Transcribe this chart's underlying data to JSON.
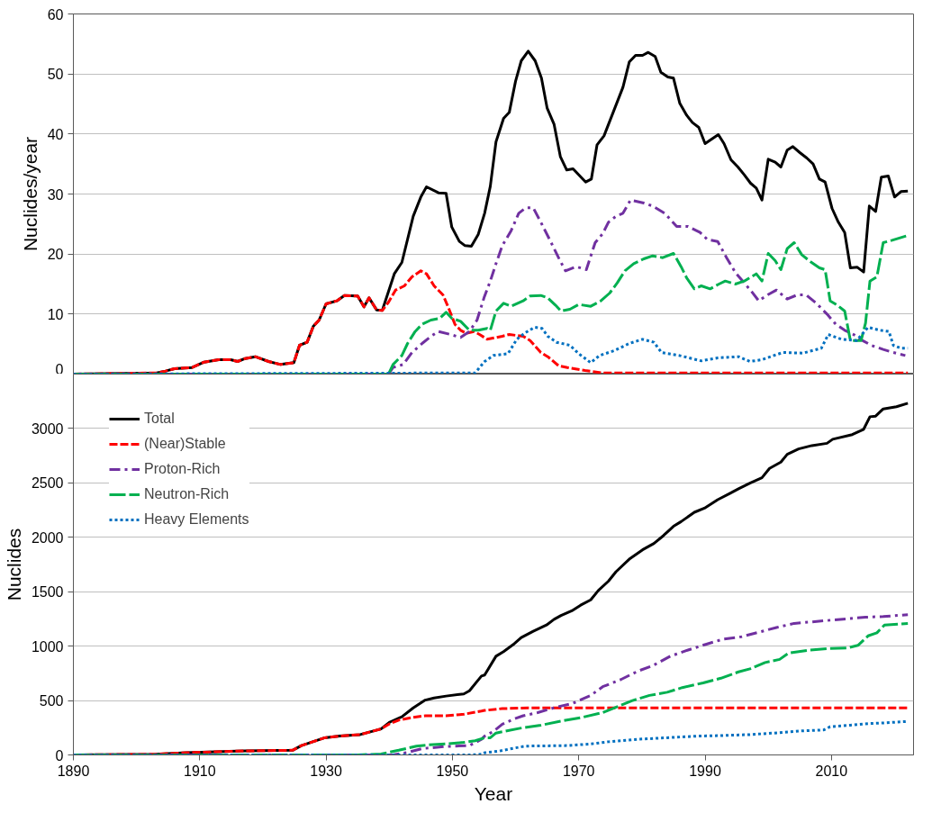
{
  "chart_data": [
    {
      "type": "line",
      "ylabel": "Nuclides/year",
      "xlim": [
        1890,
        2023
      ],
      "ylim": [
        0,
        60
      ],
      "yticks": [
        0,
        10,
        20,
        30,
        40,
        50,
        60
      ],
      "grid": "y",
      "tick_labels": "y",
      "series": [
        {
          "color": "#000000",
          "line_style": "solid",
          "x": [
            1890,
            1903.2,
            1904.6,
            1906,
            1908.8,
            1910.7,
            1913,
            1914.9,
            1916,
            1917.2,
            1918.8,
            1920.9,
            1922.8,
            1924.9,
            1925.8,
            1927,
            1928,
            1928.9,
            1930,
            1931.7,
            1932.9,
            1935,
            1936,
            1936.8,
            1938,
            1938.9,
            1940.8,
            1942,
            1943.8,
            1945,
            1945.9,
            1947.8,
            1949,
            1949.9,
            1951.1,
            1952,
            1953,
            1954.1,
            1955.1,
            1956,
            1956.9,
            1958.1,
            1959,
            1960,
            1960.9,
            1962,
            1963.1,
            1964.1,
            1965,
            1966.1,
            1967.1,
            1968.1,
            1969.1,
            1971.1,
            1972,
            1972.9,
            1974,
            1977,
            1978,
            1979,
            1980.1,
            1981,
            1982.1,
            1983,
            1984.1,
            1985,
            1986,
            1987.1,
            1988,
            1989,
            1990,
            1991.1,
            1992.1,
            1993,
            1994.1,
            1995.2,
            1996.2,
            1997.2,
            1998.1,
            1999,
            2000,
            2001.1,
            2002,
            2003,
            2003.9,
            2005,
            2006.1,
            2007.1,
            2008.1,
            2009,
            2010.1,
            2011.1,
            2012.1,
            2013,
            2014.1,
            2015.1,
            2016,
            2017,
            2017.9,
            2019,
            2020,
            2021,
            2022.1
          ],
          "values": [
            0,
            0.2,
            0.5,
            0.9,
            1.1,
            2.0,
            2.4,
            2.4,
            2.1,
            2.6,
            2.9,
            2.1,
            1.6,
            1.9,
            4.8,
            5.3,
            8.0,
            9.0,
            11.7,
            12.2,
            13.1,
            13.0,
            11.2,
            12.7,
            10.7,
            10.6,
            16.7,
            18.6,
            26.3,
            29.5,
            31.2,
            30.2,
            30.1,
            24.5,
            22.1,
            21.4,
            21.3,
            23.3,
            26.8,
            31.3,
            38.7,
            42.6,
            43.6,
            48.8,
            52.2,
            53.8,
            52.2,
            49.3,
            44.3,
            41.6,
            36.2,
            34.0,
            34.2,
            32.0,
            32.5,
            38.2,
            39.7,
            47.8,
            52.0,
            53.1,
            53.1,
            53.6,
            52.9,
            50.3,
            49.5,
            49.3,
            45.1,
            43.1,
            41.9,
            41.1,
            38.4,
            39.2,
            39.9,
            38.4,
            35.7,
            34.5,
            33.2,
            31.8,
            31.0,
            29.0,
            35.8,
            35.3,
            34.5,
            37.3,
            37.9,
            36.9,
            36.0,
            35.0,
            32.5,
            32.0,
            27.6,
            25.3,
            23.6,
            17.7,
            17.8,
            17.0,
            28.0,
            27.1,
            32.8,
            33.0,
            29.5,
            30.4,
            30.5
          ]
        },
        {
          "color": "#ff0000",
          "line_style": "dashed",
          "x": [
            1890,
            1903.2,
            1904.6,
            1906,
            1908.8,
            1910.7,
            1913,
            1914.9,
            1916,
            1917.2,
            1918.8,
            1920.9,
            1922.8,
            1924.9,
            1925.8,
            1927,
            1928,
            1928.9,
            1930,
            1931.7,
            1932.9,
            1935,
            1936,
            1936.8,
            1938,
            1938.9,
            1939.9,
            1941,
            1942.4,
            1943.6,
            1945,
            1945.9,
            1947.1,
            1948.5,
            1949.4,
            1950.4,
            1951.3,
            1952.2,
            1953.4,
            1954.3,
            1955.5,
            1957.9,
            1959,
            1961.2,
            1962.3,
            1964,
            1965.1,
            1966.8,
            1968.2,
            1971,
            1973.8,
            2022.1
          ],
          "values": [
            0,
            0.2,
            0.5,
            0.9,
            1.1,
            2.0,
            2.4,
            2.4,
            2.1,
            2.6,
            2.9,
            2.1,
            1.6,
            1.9,
            4.8,
            5.3,
            8.0,
            9.0,
            11.7,
            12.2,
            13.1,
            13.0,
            11.2,
            12.7,
            10.7,
            10.6,
            12.0,
            14.0,
            14.7,
            16.2,
            17.2,
            16.7,
            14.7,
            13.2,
            11.0,
            8.3,
            7.3,
            6.8,
            7.1,
            6.6,
            5.8,
            6.3,
            6.6,
            6.3,
            5.6,
            3.6,
            2.9,
            1.4,
            1.1,
            0.6,
            0.2,
            0.2
          ]
        },
        {
          "color": "#7030a0",
          "line_style": "dashdot",
          "x": [
            1890,
            1939.9,
            1940.6,
            1942.2,
            1943.6,
            1945.2,
            1946.6,
            1947.8,
            1949.7,
            1951.3,
            1952.7,
            1953.9,
            1955,
            1956,
            1956.9,
            1957.9,
            1959.3,
            1960.5,
            1961.6,
            1962.8,
            1964,
            1965.4,
            1966.8,
            1967.9,
            1969.6,
            1971.2,
            1972.6,
            1973.8,
            1974.7,
            1975.9,
            1977,
            1978.2,
            1980.3,
            1981.7,
            1983.6,
            1985.5,
            1987.3,
            1989.2,
            1990.4,
            1992,
            1993.4,
            1994.8,
            1996.2,
            1997.4,
            1998.5,
            1999.9,
            2001.3,
            2003,
            2004.6,
            2006,
            2007.6,
            2009.3,
            2010.7,
            2012.1,
            2013.5,
            2014.9,
            2016.3,
            2018.2,
            2019.8,
            2021.7
          ],
          "values": [
            0,
            0,
            1.1,
            1.6,
            3.6,
            5.1,
            6.3,
            7.1,
            6.6,
            6.1,
            7.1,
            9.0,
            12.7,
            15.5,
            18.4,
            21.4,
            23.9,
            26.8,
            27.7,
            27.7,
            25.3,
            22.4,
            19.4,
            17.2,
            17.9,
            17.4,
            21.9,
            23.4,
            25.3,
            26.3,
            26.8,
            29.0,
            28.5,
            28.0,
            26.8,
            24.6,
            24.6,
            23.6,
            22.4,
            22.1,
            19.4,
            16.9,
            15.2,
            13.7,
            12.2,
            13.2,
            14.0,
            12.5,
            13.2,
            13.2,
            11.8,
            10.0,
            8.3,
            7.3,
            6.6,
            5.6,
            4.8,
            4.1,
            3.6,
            3.1
          ]
        },
        {
          "color": "#00b050",
          "line_style": "longdash",
          "x": [
            1890,
            1939.9,
            1940.6,
            1942,
            1942.9,
            1944.1,
            1945.2,
            1946.6,
            1948,
            1949,
            1949.9,
            1951.3,
            1952.7,
            1954.1,
            1955.5,
            1956,
            1956.9,
            1958.1,
            1959.3,
            1961.2,
            1962.3,
            1964,
            1965.1,
            1966.3,
            1967.2,
            1968.6,
            1970,
            1971.9,
            1973.5,
            1974.9,
            1976.1,
            1977.3,
            1978.7,
            1980.3,
            1981.7,
            1983.3,
            1985,
            1986.2,
            1987.1,
            1988.3,
            1989.4,
            1990.8,
            1992.2,
            1993.2,
            1994.8,
            1996.2,
            1998.1,
            1999,
            2000,
            2001.1,
            2002,
            2003,
            2004.1,
            2005.3,
            2006.7,
            2008.1,
            2009,
            2009.8,
            2010.9,
            2012.1,
            2013,
            2014.7,
            2015.4,
            2016.1,
            2017.2,
            2018.2,
            2019.6,
            2022.1
          ],
          "values": [
            0,
            0,
            1.6,
            3.1,
            5.1,
            7.1,
            8.3,
            9.0,
            9.3,
            10.3,
            9.3,
            8.8,
            7.3,
            7.3,
            7.6,
            7.3,
            10.5,
            11.8,
            11.3,
            12.2,
            13.0,
            13.1,
            12.7,
            11.5,
            10.5,
            10.8,
            11.6,
            11.3,
            12.2,
            13.5,
            15.2,
            17.2,
            18.4,
            19.2,
            19.7,
            19.4,
            20.1,
            17.9,
            16.0,
            14.2,
            14.7,
            14.2,
            15.0,
            15.5,
            15.0,
            15.5,
            16.7,
            15.5,
            20.1,
            18.9,
            17.4,
            20.9,
            21.9,
            19.9,
            18.7,
            17.7,
            17.4,
            12.2,
            11.5,
            10.5,
            5.6,
            5.6,
            8.5,
            15.5,
            16.2,
            21.9,
            22.3,
            23.1
          ]
        },
        {
          "color": "#0070c0",
          "line_style": "dotted",
          "x": [
            1890,
            1953.6,
            1954.3,
            1955.1,
            1956.5,
            1958.8,
            1960.2,
            1961.4,
            1963,
            1964.2,
            1965.1,
            1966.5,
            1968.6,
            1970,
            1971.9,
            1973.3,
            1975.6,
            1978,
            1980.1,
            1981.9,
            1983.1,
            1985.9,
            1989.4,
            1992,
            1995.3,
            1997.1,
            1999,
            2002.3,
            2005.5,
            2008.4,
            2009.5,
            2011.6,
            2014,
            2015.8,
            2017.7,
            2019.1,
            2019.8,
            2021,
            2022.1
          ],
          "values": [
            0,
            0.2,
            1.1,
            2.1,
            3.1,
            3.4,
            5.8,
            6.8,
            7.8,
            7.6,
            6.3,
            5.3,
            4.8,
            3.4,
            1.9,
            3.1,
            3.9,
            5.1,
            5.8,
            5.3,
            3.6,
            3.1,
            2.2,
            2.7,
            2.9,
            2.1,
            2.4,
            3.6,
            3.5,
            4.3,
            6.6,
            5.8,
            5.6,
            7.8,
            7.3,
            7.1,
            4.8,
            4.3,
            4.3
          ]
        }
      ]
    },
    {
      "type": "line",
      "xlabel": "Year",
      "ylabel": "Nuclides",
      "xlim": [
        1890,
        2023
      ],
      "xticks": [
        1890,
        1910,
        1930,
        1950,
        1970,
        1990,
        2010
      ],
      "ylim": [
        0,
        3500
      ],
      "yticks": [
        0,
        500,
        1000,
        1500,
        2000,
        2500,
        3000
      ],
      "grid": "y",
      "legend": "top left",
      "series": [
        {
          "name": "Total",
          "color": "#000000",
          "line_style": "solid",
          "x": [
            1890,
            1903,
            1907.9,
            1912.5,
            1917.2,
            1924.7,
            1926.1,
            1927.9,
            1929.8,
            1932.1,
            1935.4,
            1938.7,
            1940.1,
            1942,
            1943.8,
            1945.7,
            1947.1,
            1949,
            1951.8,
            1952.7,
            1954.6,
            1955.1,
            1956.9,
            1958.1,
            1959.8,
            1960.9,
            1962.8,
            1964.9,
            1966.1,
            1967.2,
            1968.9,
            1970.3,
            1971.9,
            1973.1,
            1974.7,
            1975.9,
            1978,
            1980.1,
            1981.9,
            1983.4,
            1985,
            1986.2,
            1988.3,
            1989.9,
            1992,
            1993.9,
            1995.3,
            1997.1,
            1999,
            2000.2,
            2002,
            2003,
            2004.8,
            2006.9,
            2009.3,
            2010.2,
            2013.3,
            2015.1,
            2016.1,
            2017,
            2018.2,
            2020.3,
            2022.1
          ],
          "values": [
            0,
            6,
            20,
            29,
            37,
            43,
            86,
            121,
            158,
            173,
            187,
            239,
            302,
            351,
            432,
            504,
            524,
            541,
            561,
            590,
            725,
            734,
            907,
            950,
            1022,
            1079,
            1137,
            1194,
            1246,
            1281,
            1324,
            1376,
            1425,
            1511,
            1597,
            1684,
            1799,
            1885,
            1943,
            2015,
            2101,
            2144,
            2230,
            2268,
            2346,
            2403,
            2446,
            2498,
            2547,
            2633,
            2691,
            2763,
            2812,
            2843,
            2864,
            2901,
            2944,
            2993,
            3108,
            3114,
            3180,
            3200,
            3232
          ]
        },
        {
          "name": "(Near)Stable",
          "color": "#ff0000",
          "line_style": "dashed",
          "x": [
            1890,
            1903,
            1907.9,
            1912.5,
            1917.2,
            1924.7,
            1926.1,
            1927.9,
            1929.8,
            1932.1,
            1935.4,
            1938.7,
            1940.1,
            1941.6,
            1943.8,
            1945.7,
            1949,
            1951.8,
            1954.6,
            1955.1,
            1957.9,
            1962,
            2022.1
          ],
          "values": [
            0,
            6,
            20,
            29,
            37,
            43,
            86,
            121,
            158,
            173,
            187,
            239,
            288,
            322,
            345,
            360,
            360,
            374,
            403,
            409,
            426,
            432,
            432
          ]
        },
        {
          "name": "Proton-Rich",
          "color": "#7030a0",
          "line_style": "dashdot",
          "x": [
            1890,
            1940.6,
            1942.9,
            1945.2,
            1949,
            1952.7,
            1954.6,
            1955.1,
            1956.5,
            1957.9,
            1959.8,
            1961.2,
            1963.5,
            1966.3,
            1969.1,
            1971.9,
            1973.8,
            1976.6,
            1979.4,
            1981.7,
            1984.5,
            1987.3,
            1990.1,
            1992.9,
            1995.7,
            1998.5,
            2001.3,
            2004.1,
            2006.9,
            2009.8,
            2012.6,
            2015.4,
            2018.2,
            2022.1
          ],
          "values": [
            0,
            0,
            23,
            58,
            78,
            86,
            144,
            173,
            216,
            282,
            331,
            360,
            389,
            437,
            475,
            547,
            627,
            691,
            771,
            820,
            907,
            964,
            1016,
            1065,
            1085,
            1128,
            1171,
            1209,
            1223,
            1238,
            1252,
            1266,
            1272,
            1289
          ]
        },
        {
          "name": "Neutron-Rich",
          "color": "#00b050",
          "line_style": "longdash",
          "x": [
            1890,
            1935,
            1938.7,
            1941.5,
            1944.3,
            1946.2,
            1949,
            1951.8,
            1953.6,
            1955.1,
            1956,
            1956.9,
            1960.7,
            1964,
            1967.2,
            1970.5,
            1973.8,
            1975.6,
            1978.4,
            1981.2,
            1984,
            1986.4,
            1989.7,
            1992.5,
            1995.3,
            1997.1,
            1999.5,
            2001.8,
            2003.2,
            2006.5,
            2009.8,
            2012.6,
            2014.2,
            2015.8,
            2017.2,
            2018.4,
            2022.1
          ],
          "values": [
            0,
            0,
            9,
            43,
            81,
            92,
            101,
            115,
            130,
            158,
            158,
            201,
            245,
            273,
            311,
            345,
            389,
            432,
            498,
            547,
            576,
            619,
            662,
            705,
            763,
            791,
            849,
            878,
            935,
            964,
            979,
            984,
            1007,
            1094,
            1122,
            1194,
            1209
          ]
        },
        {
          "name": "Heavy Elements",
          "color": "#0070c0",
          "line_style": "dotted",
          "x": [
            1890,
            1953,
            1954.6,
            1955.1,
            1957.4,
            1959.8,
            1961.6,
            1968.2,
            1971.9,
            1974.7,
            1979.4,
            1984,
            1988.7,
            1992.5,
            1997.1,
            2000.9,
            2005.6,
            2008.8,
            2009.8,
            2013,
            2015.8,
            2018.2,
            2022.1
          ],
          "values": [
            0,
            0,
            6,
            20,
            35,
            63,
            81,
            86,
            101,
            121,
            144,
            158,
            173,
            178,
            187,
            201,
            222,
            230,
            259,
            273,
            288,
            294,
            308
          ]
        }
      ]
    }
  ]
}
